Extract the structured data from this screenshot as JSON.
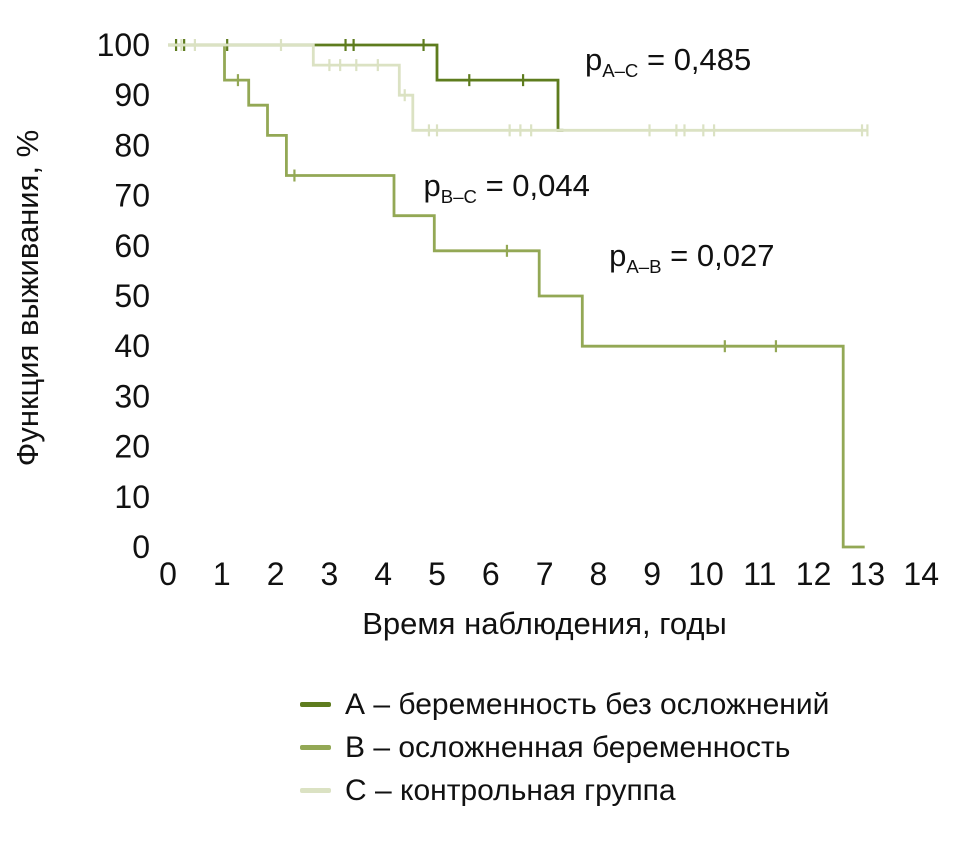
{
  "chart_data": {
    "type": "line",
    "chart_style": "kaplan-meier-step",
    "title": "",
    "xlabel": "Время наблюдения, годы",
    "ylabel": "Функция выживания, %",
    "xlim": [
      0,
      14
    ],
    "ylim": [
      0,
      100
    ],
    "xticks": [
      0,
      1,
      2,
      3,
      4,
      5,
      6,
      7,
      8,
      9,
      10,
      11,
      12,
      13,
      14
    ],
    "yticks": [
      0,
      10,
      20,
      30,
      40,
      50,
      60,
      70,
      80,
      90,
      100
    ],
    "grid": false,
    "legend_position": "bottom",
    "series": [
      {
        "name": "A",
        "label": "А – беременность без осложнений",
        "color": "#5e7c1e",
        "points": [
          [
            0,
            100
          ],
          [
            5,
            100
          ],
          [
            5,
            93
          ],
          [
            7.25,
            93
          ],
          [
            7.25,
            83
          ],
          [
            7.35,
            83
          ]
        ],
        "censors": [
          [
            0.15,
            100
          ],
          [
            0.3,
            100
          ],
          [
            1.1,
            100
          ],
          [
            3.3,
            100
          ],
          [
            3.45,
            100
          ],
          [
            4.75,
            100
          ],
          [
            5.6,
            93
          ],
          [
            6.6,
            93
          ]
        ]
      },
      {
        "name": "B",
        "label": "В – осложненная беременность",
        "color": "#93a855",
        "points": [
          [
            0,
            100
          ],
          [
            1.05,
            100
          ],
          [
            1.05,
            93
          ],
          [
            1.5,
            93
          ],
          [
            1.5,
            88
          ],
          [
            1.85,
            88
          ],
          [
            1.85,
            82
          ],
          [
            2.2,
            82
          ],
          [
            2.2,
            74
          ],
          [
            4.2,
            74
          ],
          [
            4.2,
            66
          ],
          [
            4.95,
            66
          ],
          [
            4.95,
            59
          ],
          [
            6.9,
            59
          ],
          [
            6.9,
            50
          ],
          [
            7.7,
            50
          ],
          [
            7.7,
            40
          ],
          [
            12.55,
            40
          ],
          [
            12.55,
            0
          ],
          [
            12.95,
            0
          ]
        ],
        "censors": [
          [
            1.3,
            93
          ],
          [
            2.35,
            74
          ],
          [
            6.3,
            59
          ],
          [
            10.35,
            40
          ],
          [
            11.3,
            40
          ]
        ]
      },
      {
        "name": "C",
        "label": "С – контрольная группа",
        "color": "#dbe2c3",
        "points": [
          [
            0,
            100
          ],
          [
            2.7,
            100
          ],
          [
            2.7,
            96
          ],
          [
            4.3,
            96
          ],
          [
            4.3,
            90
          ],
          [
            4.55,
            90
          ],
          [
            4.55,
            83
          ],
          [
            13,
            83
          ]
        ],
        "censors": [
          [
            0.25,
            100
          ],
          [
            0.5,
            100
          ],
          [
            2.1,
            100
          ],
          [
            3.0,
            96
          ],
          [
            3.2,
            96
          ],
          [
            3.5,
            96
          ],
          [
            3.9,
            96
          ],
          [
            4.4,
            90
          ],
          [
            4.85,
            83
          ],
          [
            5.0,
            83
          ],
          [
            6.35,
            83
          ],
          [
            6.55,
            83
          ],
          [
            6.75,
            83
          ],
          [
            8.95,
            83
          ],
          [
            9.45,
            83
          ],
          [
            9.6,
            83
          ],
          [
            9.95,
            83
          ],
          [
            10.15,
            83
          ],
          [
            12.9,
            83
          ],
          [
            13.0,
            83
          ]
        ]
      }
    ],
    "annotations": [
      {
        "p": "p",
        "sub": "А–С",
        "value": " = 0,485",
        "x": 7.75,
        "y": 97
      },
      {
        "p": "p",
        "sub": "В–С",
        "value": " = 0,044",
        "x": 4.75,
        "y": 72
      },
      {
        "p": "p",
        "sub": "А–В",
        "value": " = 0,027",
        "x": 8.2,
        "y": 58
      }
    ]
  }
}
